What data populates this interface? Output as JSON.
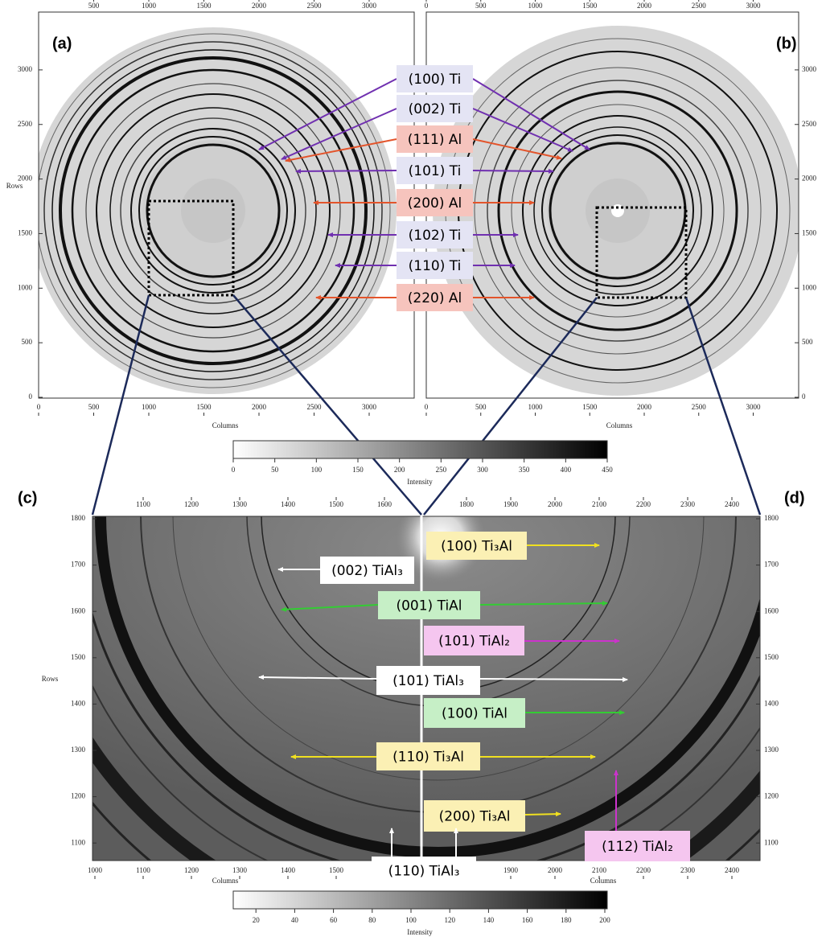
{
  "top_panels": {
    "a_label": "(a)",
    "b_label": "(b)",
    "a_top_ticks": [
      500,
      1000,
      1500,
      2000,
      2500,
      3000
    ],
    "b_top_ticks": [
      0,
      500,
      1000,
      1500,
      2000,
      2500,
      3000
    ],
    "a_bottom_ticks": [
      0,
      500,
      1000,
      1500,
      2000,
      2500,
      3000
    ],
    "b_bottom_ticks": [
      0,
      500,
      1000,
      1500,
      2000,
      2500,
      3000
    ],
    "left_ticks": [
      3000,
      2500,
      2000,
      1500,
      1000,
      500,
      0
    ],
    "right_ticks": [
      3000,
      2500,
      2000,
      1500,
      1000,
      500,
      0
    ],
    "x_axis_title_a": "Columns",
    "x_axis_title_b": "Columns",
    "y_axis_title": "Rows",
    "colorbar": {
      "ticks": [
        0,
        50,
        100,
        150,
        200,
        250,
        300,
        350,
        400,
        450
      ],
      "title": "Intensity"
    },
    "labels": [
      "(100) Ti",
      "(002) Ti",
      "(111) Al",
      "(101) Ti",
      "(200) Al",
      "(102) Ti",
      "(110) Ti",
      "(220) Al"
    ]
  },
  "bottom_panels": {
    "c_label": "(c)",
    "d_label": "(d)",
    "c_top_ticks": [
      1100,
      1200,
      1300,
      1400,
      1500,
      1600
    ],
    "d_top_ticks": [
      1800,
      1900,
      2000,
      2100,
      2200,
      2300,
      2400
    ],
    "c_bottom_ticks": [
      1000,
      1100,
      1200,
      1300,
      1400,
      1500
    ],
    "d_bottom_ticks": [
      1900,
      2000,
      2100,
      2200,
      2300,
      2400
    ],
    "left_ticks": [
      1800,
      1700,
      1600,
      1500,
      1400,
      1300,
      1200,
      1100
    ],
    "right_ticks": [
      1800,
      1700,
      1600,
      1500,
      1400,
      1300,
      1200,
      1100
    ],
    "x_axis_title_c": "Columns",
    "x_axis_title_d": "Columns",
    "y_axis_title": "Rows",
    "colorbar": {
      "ticks": [
        20,
        40,
        60,
        80,
        100,
        120,
        140,
        160,
        180,
        200
      ],
      "title": "Intensity"
    },
    "labels": [
      "(100) Ti₃Al",
      "(002) TiAl₃",
      "(001) TiAl",
      "(101) TiAl₂",
      "(101) TiAl₃",
      "(100) TiAl",
      "(110) Ti₃Al",
      "(200) Ti₃Al",
      "(112) TiAl₂",
      "(110) TiAl₃"
    ]
  }
}
